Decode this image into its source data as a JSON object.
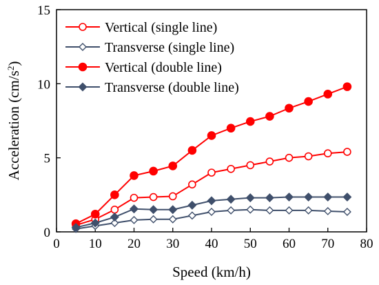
{
  "chart_data": {
    "type": "line",
    "xlabel": "Speed (km/h)",
    "ylabel_main": "Acceleration (cm/s",
    "ylabel_sup": "2",
    "ylabel_end": ")",
    "xlim": [
      0,
      80
    ],
    "ylim": [
      0,
      15
    ],
    "xticks": [
      "0",
      "10",
      "20",
      "30",
      "40",
      "50",
      "60",
      "70",
      "80"
    ],
    "yticks": [
      "0",
      "5",
      "10",
      "15"
    ],
    "grid": false,
    "legend_position": "top-left",
    "x": [
      5,
      10,
      15,
      20,
      25,
      30,
      35,
      40,
      45,
      50,
      55,
      60,
      65,
      70,
      75
    ],
    "series": [
      {
        "name": "Vertical (single line)",
        "color": "#ff0000",
        "marker": "open-circle",
        "values": [
          0.45,
          0.85,
          1.5,
          2.3,
          2.35,
          2.4,
          3.2,
          4.0,
          4.25,
          4.5,
          4.75,
          5.0,
          5.1,
          5.3,
          5.4
        ]
      },
      {
        "name": "Transverse (single line)",
        "color": "#3f4f6b",
        "marker": "open-diamond",
        "values": [
          0.2,
          0.4,
          0.6,
          0.8,
          0.85,
          0.85,
          1.1,
          1.35,
          1.45,
          1.5,
          1.45,
          1.45,
          1.45,
          1.4,
          1.35
        ]
      },
      {
        "name": "Vertical (double line)",
        "color": "#ff0000",
        "marker": "filled-circle",
        "values": [
          0.55,
          1.2,
          2.5,
          3.8,
          4.1,
          4.45,
          5.5,
          6.5,
          7.0,
          7.45,
          7.8,
          8.35,
          8.8,
          9.3,
          9.8
        ]
      },
      {
        "name": "Transverse (double line)",
        "color": "#3f4f6b",
        "marker": "filled-diamond",
        "values": [
          0.3,
          0.6,
          1.0,
          1.55,
          1.5,
          1.5,
          1.8,
          2.1,
          2.2,
          2.3,
          2.3,
          2.35,
          2.35,
          2.35,
          2.35
        ]
      }
    ]
  }
}
